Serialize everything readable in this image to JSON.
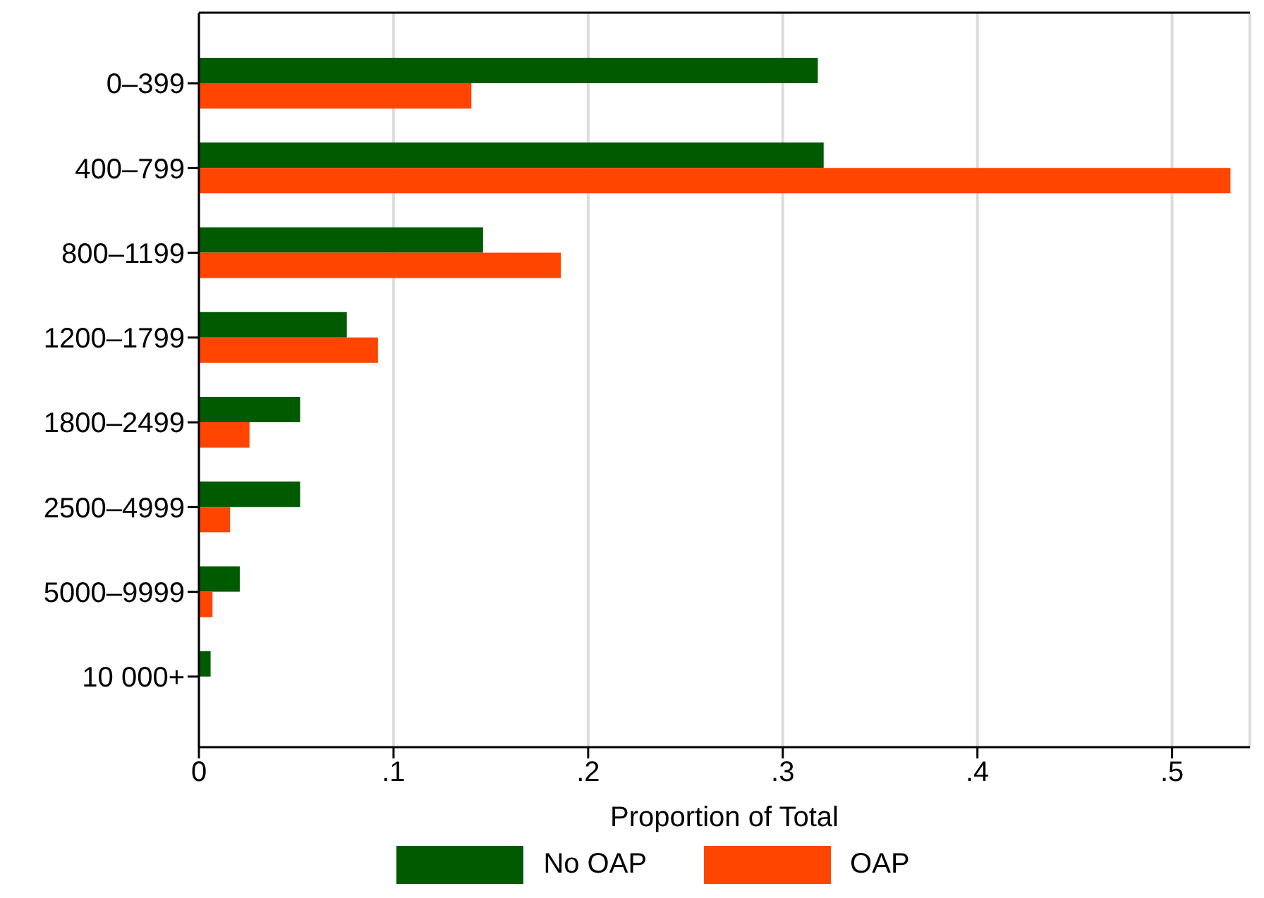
{
  "chart_data": {
    "type": "bar",
    "orientation": "horizontal",
    "xlabel": "Proportion of Total",
    "categories": [
      "0–399",
      "400–799",
      "800–1199",
      "1200–1799",
      "1800–2499",
      "2500–4999",
      "5000–9999",
      "10 000+"
    ],
    "series": [
      {
        "name": "No OAP",
        "color": "#005a00",
        "values": [
          0.318,
          0.321,
          0.146,
          0.076,
          0.052,
          0.052,
          0.021,
          0.006
        ]
      },
      {
        "name": "OAP",
        "color": "#ff4500",
        "values": [
          0.14,
          0.53,
          0.186,
          0.092,
          0.026,
          0.016,
          0.007,
          null
        ]
      }
    ],
    "xlim": [
      0,
      0.54
    ],
    "xticks": [
      0,
      {
        "value": 0.1,
        "label": ".1"
      },
      {
        "value": 0.2,
        "label": ".2"
      },
      {
        "value": 0.3,
        "label": ".3"
      },
      {
        "value": 0.4,
        "label": ".4"
      },
      {
        "value": 0.5,
        "label": ".5"
      }
    ],
    "grid": "x",
    "legend": "bottom"
  }
}
